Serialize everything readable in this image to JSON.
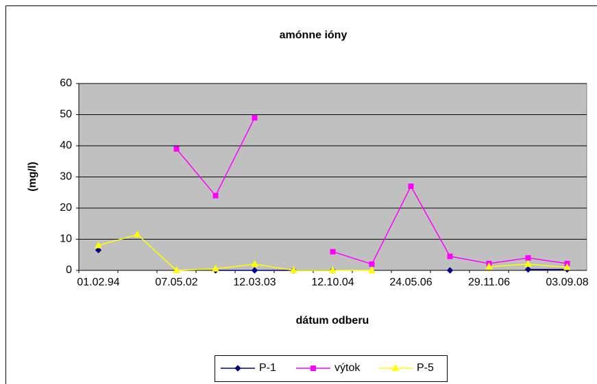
{
  "chart_data": {
    "type": "line",
    "title": "amónne ióny",
    "x_label": "dátum odberu",
    "y_label": "(mg/l)",
    "categories": [
      "01.02.94",
      null,
      "07.05.02",
      null,
      "12.03.03",
      null,
      "12.10.04",
      null,
      "24.05.06",
      null,
      "29.11.06",
      null,
      "03.09.08"
    ],
    "series": [
      {
        "name": "P-1",
        "color": "#000080",
        "marker": "diamond",
        "values": [
          6.5,
          null,
          null,
          0,
          0,
          0,
          0,
          null,
          null,
          0,
          null,
          0.3,
          0.3
        ]
      },
      {
        "name": "výtok",
        "color": "#ff00ff",
        "marker": "square",
        "values": [
          null,
          null,
          39,
          24,
          49,
          null,
          6,
          2,
          27,
          4.5,
          2.2,
          4,
          2.2
        ]
      },
      {
        "name": "P-5",
        "color": "#ffff00",
        "marker": "triangle",
        "values": [
          8,
          11.5,
          0,
          0.5,
          2,
          0,
          0,
          0,
          null,
          null,
          1.2,
          2,
          1
        ]
      }
    ],
    "ylim": [
      0,
      60
    ],
    "yticks": [
      0,
      10,
      20,
      30,
      40,
      50,
      60
    ],
    "grid": true,
    "legend": "bottom"
  }
}
